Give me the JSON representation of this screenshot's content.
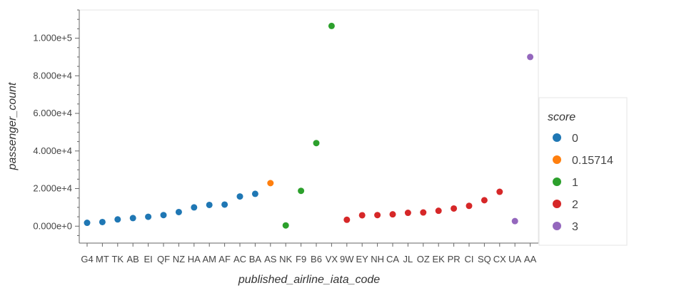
{
  "chart_data": {
    "type": "scatter",
    "xlabel": "published_airline_iata_code",
    "ylabel": "passenger_count",
    "ylim": [
      -9000,
      115000
    ],
    "y_ticks": [
      0,
      20000,
      40000,
      60000,
      80000,
      100000
    ],
    "y_tick_labels": [
      "0.000e+0",
      "2.000e+4",
      "4.000e+4",
      "6.000e+4",
      "8.000e+4",
      "1.000e+5"
    ],
    "grid": false,
    "legend": {
      "title": "score",
      "position": "right"
    },
    "categories": [
      "G4",
      "MT",
      "TK",
      "AB",
      "EI",
      "QF",
      "NZ",
      "HA",
      "AM",
      "AF",
      "AC",
      "BA",
      "AS",
      "NK",
      "F9",
      "B6",
      "VX",
      "9W",
      "EY",
      "NH",
      "CA",
      "JL",
      "OZ",
      "EK",
      "PR",
      "CI",
      "SQ",
      "CX",
      "UA",
      "AA"
    ],
    "series": [
      {
        "name": "0",
        "color": "#1f77b4",
        "x": [
          "G4",
          "MT",
          "TK",
          "AB",
          "EI",
          "QF",
          "NZ",
          "HA",
          "AM",
          "AF",
          "AC",
          "BA"
        ],
        "y": [
          1800,
          2200,
          3600,
          4300,
          5000,
          5900,
          7500,
          10000,
          11300,
          11500,
          15800,
          17200
        ]
      },
      {
        "name": "0.15714",
        "color": "#ff7f0e",
        "x": [
          "AS"
        ],
        "y": [
          22900
        ]
      },
      {
        "name": "1",
        "color": "#2ca02c",
        "x": [
          "NK",
          "F9",
          "B6",
          "VX"
        ],
        "y": [
          400,
          18800,
          44200,
          106500
        ]
      },
      {
        "name": "2",
        "color": "#d62728",
        "x": [
          "9W",
          "EY",
          "NH",
          "CA",
          "JL",
          "OZ",
          "EK",
          "PR",
          "CI",
          "SQ",
          "CX"
        ],
        "y": [
          3400,
          5800,
          5900,
          6300,
          7100,
          7300,
          8200,
          9400,
          10800,
          13800,
          18300
        ]
      },
      {
        "name": "3",
        "color": "#9467bd",
        "x": [
          "UA",
          "AA"
        ],
        "y": [
          2700,
          90000
        ]
      }
    ]
  }
}
